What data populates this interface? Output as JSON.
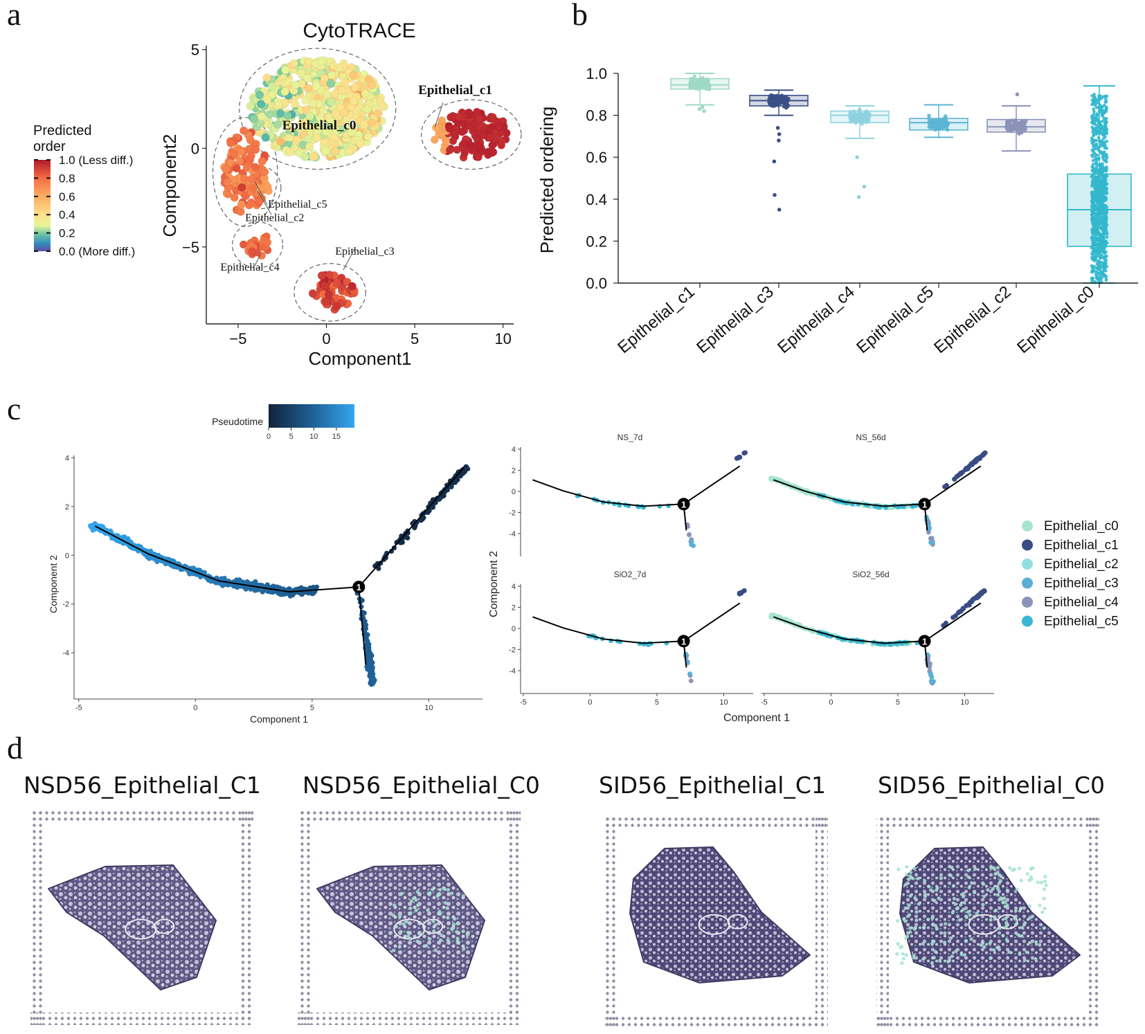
{
  "figure": {
    "panel_letters": [
      "a",
      "b",
      "c",
      "d"
    ]
  },
  "chart_data": [
    {
      "type": "scatter",
      "panel": "a",
      "title": "CytoTRACE",
      "xlabel": "Component1",
      "ylabel": "Component2",
      "xlim": [
        -6.8,
        10.6
      ],
      "ylim": [
        -8.9,
        5.2
      ],
      "xticks": [
        -5,
        0,
        5,
        10
      ],
      "yticks": [
        5,
        0,
        -5
      ],
      "xtick_labels": [
        "−5",
        "0",
        "5",
        "10"
      ],
      "ytick_labels": [
        "5",
        "0",
        "−5"
      ],
      "colorbar": {
        "title_lines": [
          "Predicted",
          "order"
        ],
        "ticks": [
          1.0,
          0.8,
          0.6,
          0.4,
          0.2,
          0.0
        ],
        "tick_labels": [
          "1.0 (Less diff.)",
          "0.8",
          "0.6",
          "0.4",
          "0.2",
          "0.0 (More diff.)"
        ]
      },
      "clusters": [
        {
          "name": "Epithelial_c0",
          "cx": -0.5,
          "cy": 2.0,
          "rx": 3.8,
          "ry": 2.5,
          "order": 0.45,
          "n": 620,
          "size": 0.26
        },
        {
          "name": "Epithelial_c1",
          "cx": 8.2,
          "cy": 0.7,
          "rx": 2.2,
          "ry": 1.2,
          "order": 0.97,
          "n": 150,
          "size": 0.24
        },
        {
          "name": "Epithelial_c5",
          "cx": -4.6,
          "cy": -1.2,
          "rx": 1.2,
          "ry": 2.2,
          "order": 0.82,
          "n": 110,
          "size": 0.26
        },
        {
          "name": "Epithelial_c2",
          "cx": -3.7,
          "cy": -2.0,
          "rx": 0.5,
          "ry": 0.5,
          "order": 0.75,
          "n": 10,
          "size": 0.24
        },
        {
          "name": "Epithelial_c4",
          "cx": -3.9,
          "cy": -4.9,
          "rx": 0.8,
          "ry": 0.6,
          "order": 0.84,
          "n": 28,
          "size": 0.24
        },
        {
          "name": "Epithelial_c3",
          "cx": 0.2,
          "cy": -7.3,
          "rx": 1.4,
          "ry": 0.9,
          "order": 0.91,
          "n": 60,
          "size": 0.26
        }
      ],
      "annotations": [
        {
          "text": "Epithelial_c0",
          "bold": true,
          "x": -2.5,
          "y": 0.95
        },
        {
          "text": "Epithelial_c1",
          "bold": true,
          "x": 5.2,
          "y": 2.75
        },
        {
          "text": "Epithelial_c5",
          "bold": false,
          "x": -3.3,
          "y": -3.0
        },
        {
          "text": "Epithelial_c2",
          "bold": false,
          "x": -4.6,
          "y": -3.7
        },
        {
          "text": "Epithelial_c4",
          "bold": false,
          "x": -6.0,
          "y": -6.2
        },
        {
          "text": "Epithelial_c3",
          "bold": false,
          "x": 0.5,
          "y": -5.4
        }
      ]
    },
    {
      "type": "box",
      "panel": "b",
      "ylabel": "Predicted ordering",
      "ylim": [
        0.0,
        1.0
      ],
      "yticks": [
        1.0,
        0.8,
        0.6,
        0.4,
        0.2,
        0.0
      ],
      "ytick_labels": [
        "1.0",
        "0.8",
        "0.6",
        "0.4",
        "0.2",
        "0.0"
      ],
      "categories": [
        "Epithelial_c1",
        "Epithelial_c3",
        "Epithelial_c4",
        "Epithelial_c5",
        "Epithelial_c2",
        "Epithelial_c0"
      ],
      "colors": [
        "#9fd9c6",
        "#3c4f86",
        "#8fd3df",
        "#5bb5d4",
        "#8b94b8",
        "#33b8cd"
      ],
      "boxes": [
        {
          "min": 0.85,
          "q1": 0.925,
          "median": 0.945,
          "q3": 0.975,
          "max": 1.0,
          "n": 140,
          "outliers": [
            0.82,
            0.83,
            0.84
          ]
        },
        {
          "min": 0.8,
          "q1": 0.845,
          "median": 0.87,
          "q3": 0.895,
          "max": 0.92,
          "n": 130,
          "outliers": [
            0.74,
            0.71,
            0.68,
            0.58,
            0.42,
            0.35
          ]
        },
        {
          "min": 0.69,
          "q1": 0.765,
          "median": 0.8,
          "q3": 0.82,
          "max": 0.845,
          "n": 90,
          "outliers": [
            0.6,
            0.46,
            0.41
          ]
        },
        {
          "min": 0.695,
          "q1": 0.73,
          "median": 0.765,
          "q3": 0.785,
          "max": 0.85,
          "n": 80,
          "outliers": []
        },
        {
          "min": 0.63,
          "q1": 0.72,
          "median": 0.745,
          "q3": 0.78,
          "max": 0.845,
          "n": 110,
          "outliers": [
            0.9
          ]
        },
        {
          "min": 0.0,
          "q1": 0.175,
          "median": 0.35,
          "q3": 0.52,
          "max": 0.94,
          "n": 900,
          "outliers": []
        }
      ]
    },
    {
      "type": "scatter",
      "panel": "c-left",
      "xlabel": "Component 1",
      "ylabel": "Component 2",
      "xlim": [
        -5.2,
        12.3
      ],
      "ylim": [
        -5.9,
        4.1
      ],
      "xticks": [
        -5,
        0,
        5,
        10
      ],
      "yticks": [
        4,
        2,
        0,
        -2,
        -4
      ],
      "xtick_labels": [
        "-5",
        "0",
        "5",
        "10"
      ],
      "ytick_labels": [
        "4",
        "2",
        "0",
        "-2",
        "-4"
      ],
      "colorbar": {
        "title": "Pseudotime",
        "ticks": [
          0,
          5,
          10,
          15
        ],
        "tick_labels": [
          "0",
          "5",
          "10",
          "15"
        ],
        "range": [
          0,
          19
        ]
      },
      "branch_point": {
        "label": "1",
        "x": 7.0,
        "y": -1.3
      },
      "trajectory": [
        [
          [
            -4.3,
            1.2
          ],
          [
            -2.0,
            0.05
          ],
          [
            1.0,
            -1.05
          ],
          [
            4.0,
            -1.5
          ],
          [
            7.0,
            -1.3
          ]
        ],
        [
          [
            7.0,
            -1.3
          ],
          [
            11.5,
            3.6
          ]
        ],
        [
          [
            7.0,
            -1.3
          ],
          [
            7.3,
            -4.5
          ]
        ]
      ]
    },
    {
      "type": "scatter",
      "panel": "c-right",
      "xlabel": "Component 1",
      "ylabel": "Component 2",
      "xlim": [
        -5.2,
        12.2
      ],
      "ylim": [
        -5.9,
        4.2
      ],
      "xticks": [
        -5,
        0,
        5,
        10
      ],
      "yticks": [
        4,
        2,
        0,
        -2,
        -4
      ],
      "xtick_labels": [
        "-5",
        "0",
        "5",
        "10"
      ],
      "ytick_labels": [
        "4",
        "2",
        "0",
        "-2",
        "-4"
      ],
      "facets": [
        "NS_7d",
        "NS_56d",
        "SiO2_7d",
        "SiO2_56d"
      ],
      "branch_point": {
        "label": "1",
        "x": 7.0,
        "y": -1.2
      },
      "legend": {
        "entries": [
          "Epithelial_c0",
          "Epithelial_c1",
          "Epithelial_c2",
          "Epithelial_c3",
          "Epithelial_c4",
          "Epithelial_c5"
        ],
        "colors": [
          "#a6e3d1",
          "#3a4c84",
          "#8fdfe0",
          "#5aaed6",
          "#8b94b8",
          "#39b7d2"
        ]
      }
    },
    {
      "type": "image_grid",
      "panel": "d",
      "titles": [
        "NSD56_Epithelial_C1",
        "NSD56_Epithelial_C0",
        "SID56_Epithelial_C1",
        "SID56_Epithelial_C0"
      ]
    }
  ]
}
